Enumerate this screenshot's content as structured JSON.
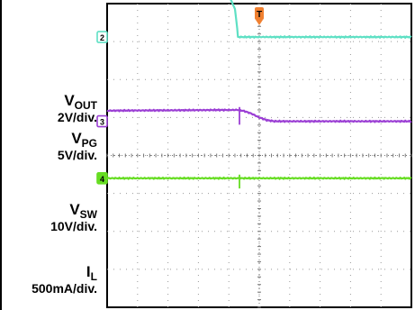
{
  "chart_data": {
    "type": "line",
    "title": "",
    "xlabel": "",
    "ylabel": "",
    "grid": true,
    "grid_divisions": {
      "x": 10,
      "y": 8
    },
    "trigger_marker": "T",
    "series": [
      {
        "name": "VOUT",
        "label_main": "V",
        "label_sub": "OUT",
        "scale": "2V/div.",
        "channel": "1",
        "color": "#1f4fd6",
        "x": [
          0,
          4.4,
          4.55,
          4.75,
          5.0,
          5.25,
          5.5,
          5.75,
          6.0,
          10
        ],
        "y": [
          6.0,
          6.0,
          5.78,
          5.72,
          5.45,
          5.15,
          4.9,
          4.72,
          4.66,
          4.62
        ]
      },
      {
        "name": "VPG",
        "label_main": "V",
        "label_sub": "PG",
        "scale": "5V/div.",
        "channel": "2",
        "color": "#5ee0c4",
        "x": [
          0,
          3.8,
          3.95,
          4.1,
          4.2,
          4.25,
          4.3,
          10
        ],
        "y": [
          4.35,
          4.35,
          4.25,
          4.05,
          3.85,
          3.55,
          3.12,
          3.12
        ]
      },
      {
        "name": "VSW",
        "label_main": "V",
        "label_sub": "SW",
        "scale": "10V/div.",
        "channel": "3",
        "color": "#9b3fd4",
        "x": [
          0,
          4.3,
          4.5,
          4.75,
          5.0,
          5.25,
          5.5,
          10
        ],
        "y": [
          1.18,
          1.2,
          1.17,
          1.1,
          1.0,
          0.93,
          0.9,
          0.9
        ]
      },
      {
        "name": "IL",
        "label_main": "I",
        "label_sub": "L",
        "scale": "500mA/div.",
        "channel": "4",
        "color": "#66dd22",
        "x": [
          0,
          10
        ],
        "y": [
          -0.6,
          -0.6
        ]
      }
    ]
  }
}
